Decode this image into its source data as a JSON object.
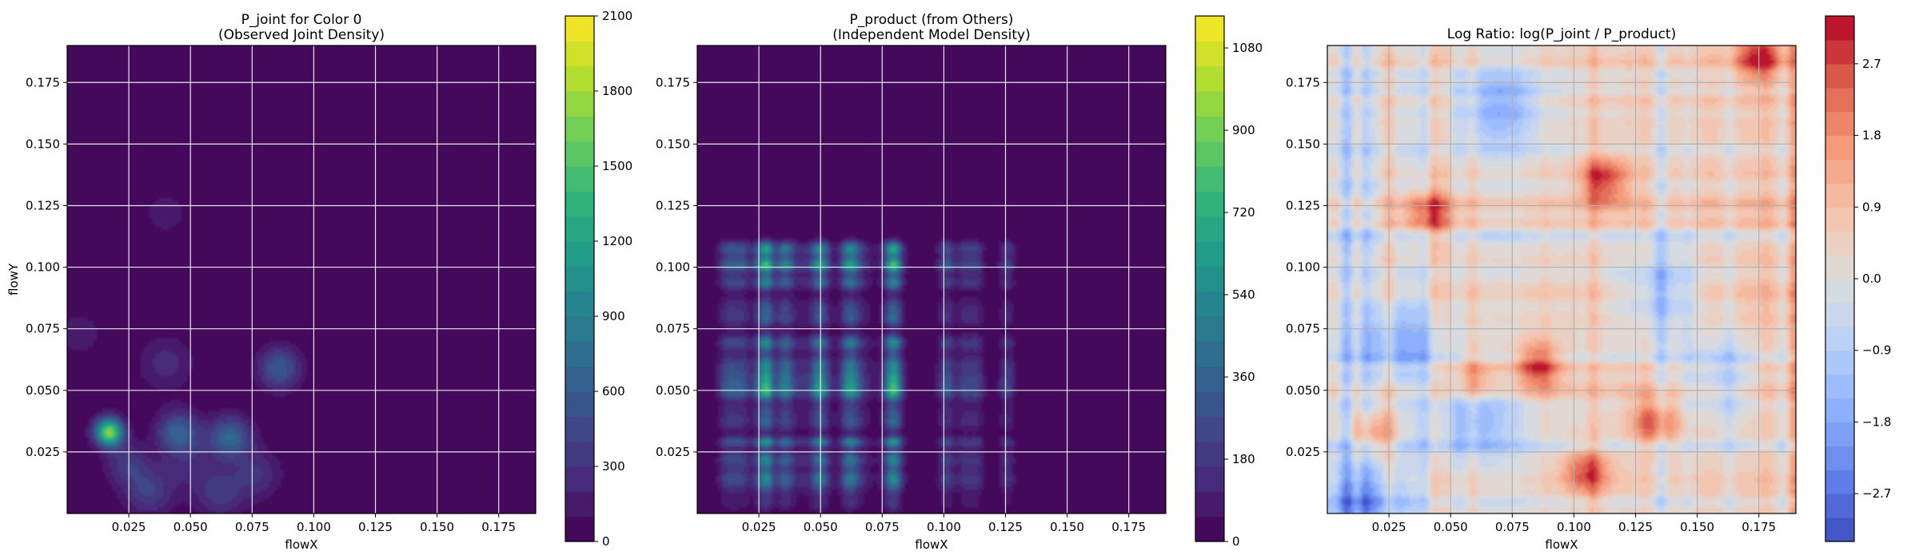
{
  "chart_data": [
    {
      "type": "heatmap",
      "style": "filled-contour",
      "title": [
        "P_joint for Color 0",
        "(Observed Joint Density)"
      ],
      "xlabel": "flowX",
      "ylabel": "flowY",
      "xlim": [
        0.0,
        0.19
      ],
      "ylim": [
        0.0,
        0.19
      ],
      "xticks": [
        "0.025",
        "0.050",
        "0.075",
        "0.100",
        "0.125",
        "0.150",
        "0.175"
      ],
      "yticks": [
        "0.025",
        "0.050",
        "0.075",
        "0.100",
        "0.125",
        "0.150",
        "0.175"
      ],
      "grid": true,
      "colormap": "viridis",
      "colorbar": {
        "ticks": [
          "0",
          "300",
          "600",
          "900",
          "1200",
          "1500",
          "1800",
          "2100"
        ],
        "range": [
          0,
          2100
        ],
        "levels": 21
      },
      "peaks": [
        {
          "x": 0.017,
          "y": 0.033,
          "value": 1700,
          "spread": 0.004
        },
        {
          "x": 0.045,
          "y": 0.033,
          "value": 650,
          "spread": 0.006
        },
        {
          "x": 0.066,
          "y": 0.031,
          "value": 700,
          "spread": 0.006
        },
        {
          "x": 0.086,
          "y": 0.059,
          "value": 600,
          "spread": 0.006
        },
        {
          "x": 0.033,
          "y": 0.009,
          "value": 400,
          "spread": 0.007
        },
        {
          "x": 0.062,
          "y": 0.008,
          "value": 350,
          "spread": 0.007
        },
        {
          "x": 0.077,
          "y": 0.016,
          "value": 300,
          "spread": 0.007
        },
        {
          "x": 0.04,
          "y": 0.061,
          "value": 250,
          "spread": 0.008
        },
        {
          "x": 0.005,
          "y": 0.073,
          "value": 200,
          "spread": 0.006
        },
        {
          "x": 0.04,
          "y": 0.122,
          "value": 180,
          "spread": 0.006
        },
        {
          "x": 0.024,
          "y": 0.02,
          "value": 350,
          "spread": 0.006
        },
        {
          "x": 0.05,
          "y": 0.02,
          "value": 200,
          "spread": 0.008
        }
      ]
    },
    {
      "type": "heatmap",
      "style": "filled-contour",
      "title": [
        "P_product (from Others)",
        "(Independent Model Density)"
      ],
      "xlabel": "flowX",
      "ylabel": "",
      "xlim": [
        0.0,
        0.19
      ],
      "ylim": [
        0.0,
        0.19
      ],
      "xticks": [
        "0.025",
        "0.050",
        "0.075",
        "0.100",
        "0.125",
        "0.150",
        "0.175"
      ],
      "yticks": [
        "0.025",
        "0.050",
        "0.075",
        "0.100",
        "0.125",
        "0.150",
        "0.175"
      ],
      "grid": true,
      "colormap": "viridis",
      "colorbar": {
        "ticks": [
          "0",
          "180",
          "360",
          "540",
          "720",
          "900",
          "1080"
        ],
        "range": [
          0,
          1150
        ],
        "levels": 21
      },
      "peak": {
        "x": 0.029,
        "y": 0.029,
        "value": 1000
      }
    },
    {
      "type": "heatmap",
      "style": "filled-contour",
      "title": [
        "Log Ratio: log(P_joint / P_product)"
      ],
      "xlabel": "flowX",
      "ylabel": "",
      "xlim": [
        0.0,
        0.19
      ],
      "ylim": [
        0.0,
        0.19
      ],
      "xticks": [
        "0.025",
        "0.050",
        "0.075",
        "0.100",
        "0.125",
        "0.150",
        "0.175"
      ],
      "yticks": [
        "0.025",
        "0.050",
        "0.075",
        "0.100",
        "0.125",
        "0.150",
        "0.175"
      ],
      "grid": true,
      "colormap": "coolwarm",
      "colorbar": {
        "ticks": [
          "−2.7",
          "−1.8",
          "−0.9",
          "0.0",
          "0.9",
          "1.8",
          "2.7"
        ],
        "range": [
          -3.3,
          3.3
        ],
        "levels": 22
      },
      "hotspots": [
        {
          "x": 0.041,
          "y": 0.122,
          "value": 2.3
        },
        {
          "x": 0.085,
          "y": 0.06,
          "value": 2.6
        },
        {
          "x": 0.133,
          "y": 0.037,
          "value": 2.2
        },
        {
          "x": 0.112,
          "y": 0.135,
          "value": 2.5
        },
        {
          "x": 0.105,
          "y": 0.017,
          "value": 2.3
        },
        {
          "x": 0.06,
          "y": 0.055,
          "value": 1.8
        },
        {
          "x": 0.175,
          "y": 0.185,
          "value": 2.3
        },
        {
          "x": 0.018,
          "y": 0.032,
          "value": 1.8
        }
      ],
      "coldspots": [
        {
          "x": 0.07,
          "y": 0.165,
          "value": -1.8
        },
        {
          "x": 0.06,
          "y": 0.04,
          "value": -1.6
        },
        {
          "x": 0.015,
          "y": 0.005,
          "value": -1.8
        },
        {
          "x": 0.135,
          "y": 0.09,
          "value": -1.5
        },
        {
          "x": 0.03,
          "y": 0.07,
          "value": -1.6
        },
        {
          "x": 0.16,
          "y": 0.055,
          "value": -1.3
        }
      ]
    }
  ]
}
